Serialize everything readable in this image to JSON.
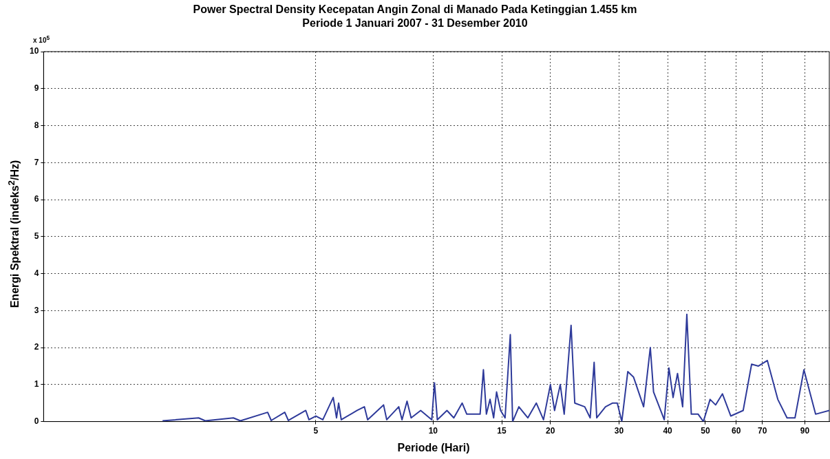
{
  "chart_data": {
    "type": "line",
    "title": "Power Spectral Density Kecepatan Angin Zonal di Manado Pada Ketinggian 1.455 km",
    "subtitle": "Periode 1 Januari 2007 - 31 Desember 2010",
    "xlabel": "Periode (Hari)",
    "ylabel": "Energi Spektral (indeks$^{2}$/Hz)",
    "annotations": [
      "x 10$^{5}$"
    ],
    "log": "x",
    "grid": true,
    "marker": "none",
    "line_style": "solid",
    "xlim": [
      1,
      104
    ],
    "xticks": [
      5,
      10,
      15,
      20,
      30,
      40,
      50,
      60,
      70,
      90
    ],
    "ylim": [
      0,
      10
    ],
    "yticks": [
      0,
      1,
      2,
      3,
      4,
      5,
      6,
      7,
      8,
      9,
      10
    ],
    "series": [
      {
        "color": "#2e3a9a",
        "x": [
          2.02,
          2.5,
          2.6,
          3.07,
          3.2,
          3.76,
          3.84,
          4.16,
          4.25,
          4.71,
          4.8,
          5.0,
          5.21,
          5.54,
          5.65,
          5.72,
          5.81,
          6.38,
          6.66,
          6.79,
          7.46,
          7.6,
          8.16,
          8.32,
          8.57,
          8.78,
          9.29,
          9.92,
          10.08,
          10.25,
          10.85,
          11.3,
          11.87,
          12.2,
          13.2,
          13.46,
          13.7,
          14.0,
          14.3,
          14.55,
          14.9,
          15.3,
          15.78,
          16.0,
          16.6,
          17.5,
          18.4,
          19.2,
          20.0,
          20.5,
          21.2,
          21.7,
          22.6,
          23.1,
          24.5,
          25.3,
          25.9,
          26.3,
          27.7,
          28.9,
          29.7,
          30.5,
          31.6,
          32.7,
          34.7,
          36.1,
          36.8,
          39.2,
          40.3,
          41.3,
          42.4,
          43.7,
          44.8,
          46.0,
          47.9,
          49.4,
          51.4,
          53.1,
          55.3,
          58.1,
          62.5,
          65.7,
          68.4,
          72.1,
          76.7,
          81.0,
          84.9,
          89.5,
          95.9,
          104
        ],
        "values": [
          0.02,
          0.1,
          0.02,
          0.1,
          0.02,
          0.25,
          0.03,
          0.25,
          0.03,
          0.3,
          0.05,
          0.15,
          0.05,
          0.65,
          0.1,
          0.5,
          0.05,
          0.3,
          0.4,
          0.05,
          0.45,
          0.05,
          0.4,
          0.05,
          0.55,
          0.1,
          0.3,
          0.05,
          1.05,
          0.05,
          0.3,
          0.1,
          0.5,
          0.2,
          0.2,
          1.4,
          0.2,
          0.6,
          0.1,
          0.8,
          0.3,
          0.1,
          2.35,
          0.0,
          0.4,
          0.1,
          0.5,
          0.05,
          1.0,
          0.3,
          1.0,
          0.2,
          2.6,
          0.5,
          0.4,
          0.1,
          1.6,
          0.1,
          0.4,
          0.5,
          0.5,
          0.0,
          1.35,
          1.2,
          0.4,
          2.0,
          0.8,
          0.05,
          1.45,
          0.65,
          1.3,
          0.4,
          2.9,
          0.2,
          0.2,
          0.0,
          0.6,
          0.45,
          0.75,
          0.15,
          0.3,
          1.55,
          1.5,
          1.65,
          0.6,
          0.1,
          0.1,
          1.4,
          0.2,
          0.3
        ]
      }
    ]
  }
}
